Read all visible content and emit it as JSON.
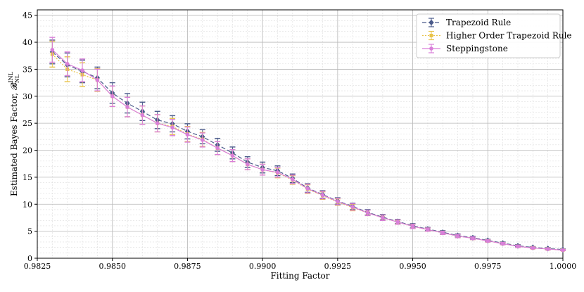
{
  "chart_data": {
    "type": "line",
    "xlabel": "Fitting Factor",
    "ylabel": "Estimated Bayes Factor, 𝓑",
    "ylabel_sup": "INL",
    "ylabel_sub": "NL",
    "xlim": [
      0.9825,
      1.0
    ],
    "ylim": [
      0,
      46
    ],
    "x_ticks": [
      0.9825,
      0.985,
      0.9875,
      0.99,
      0.9925,
      0.995,
      0.9975,
      1.0
    ],
    "x_tick_labels": [
      "0.9825",
      "0.9850",
      "0.9875",
      "0.9900",
      "0.9925",
      "0.9950",
      "0.9975",
      "1.0000"
    ],
    "y_ticks": [
      0,
      5,
      10,
      15,
      20,
      25,
      30,
      35,
      40,
      45
    ],
    "y_tick_labels": [
      "0",
      "5",
      "10",
      "15",
      "20",
      "25",
      "30",
      "35",
      "40",
      "45"
    ],
    "grid": true,
    "legend_position": "top-right",
    "x": [
      0.983,
      0.9835,
      0.984,
      0.9845,
      0.985,
      0.9855,
      0.986,
      0.9865,
      0.987,
      0.9875,
      0.988,
      0.9885,
      0.989,
      0.9895,
      0.99,
      0.9905,
      0.991,
      0.9915,
      0.992,
      0.9925,
      0.993,
      0.9935,
      0.994,
      0.9945,
      0.995,
      0.9955,
      0.996,
      0.9965,
      0.997,
      0.9975,
      0.998,
      0.9985,
      0.999,
      0.9995,
      1.0
    ],
    "series": [
      {
        "name": "Trapezoid Rule",
        "color": "#4a5a8a",
        "dash": "6,3",
        "marker": "diamond",
        "values": [
          38.2,
          35.8,
          34.6,
          33.4,
          30.6,
          28.7,
          27.2,
          25.6,
          24.9,
          23.5,
          22.5,
          21.0,
          19.5,
          17.8,
          16.8,
          16.2,
          14.8,
          13.0,
          11.8,
          10.6,
          9.6,
          8.5,
          7.6,
          6.8,
          6.0,
          5.4,
          4.8,
          4.2,
          3.8,
          3.3,
          2.8,
          2.3,
          2.0,
          1.8,
          1.6
        ],
        "errors": [
          2.2,
          2.2,
          2.1,
          2.0,
          1.9,
          1.8,
          1.7,
          1.6,
          1.5,
          1.4,
          1.3,
          1.2,
          1.1,
          1.0,
          1.0,
          0.9,
          0.8,
          0.8,
          0.7,
          0.6,
          0.6,
          0.5,
          0.5,
          0.4,
          0.4,
          0.3,
          0.3,
          0.3,
          0.25,
          0.2,
          0.2,
          0.2,
          0.15,
          0.15,
          0.1
        ]
      },
      {
        "name": "Higher Order Trapezoid Rule",
        "color": "#e8c34a",
        "dash": "2,2",
        "marker": "square",
        "values": [
          37.8,
          35.0,
          34.0,
          33.0,
          30.0,
          28.0,
          26.5,
          25.0,
          24.4,
          23.0,
          22.0,
          20.4,
          19.0,
          17.4,
          16.4,
          15.8,
          14.5,
          12.8,
          11.6,
          10.4,
          9.4,
          8.4,
          7.5,
          6.7,
          5.9,
          5.3,
          4.7,
          4.1,
          3.7,
          3.2,
          2.7,
          2.2,
          1.9,
          1.7,
          1.5
        ],
        "errors": [
          2.4,
          2.3,
          2.2,
          2.1,
          1.9,
          1.8,
          1.7,
          1.6,
          1.5,
          1.4,
          1.3,
          1.2,
          1.1,
          1.0,
          1.0,
          0.9,
          0.8,
          0.8,
          0.7,
          0.6,
          0.6,
          0.5,
          0.5,
          0.4,
          0.4,
          0.3,
          0.3,
          0.3,
          0.25,
          0.2,
          0.2,
          0.2,
          0.15,
          0.15,
          0.1
        ]
      },
      {
        "name": "Steppingstone",
        "color": "#d97fd9",
        "dash": "",
        "marker": "circle",
        "values": [
          38.6,
          36.0,
          34.8,
          33.0,
          30.0,
          28.0,
          26.5,
          25.0,
          24.2,
          22.9,
          21.9,
          20.4,
          19.0,
          17.4,
          16.4,
          15.9,
          14.6,
          12.9,
          11.7,
          10.5,
          9.5,
          8.4,
          7.5,
          6.7,
          5.9,
          5.3,
          4.7,
          4.1,
          3.7,
          3.2,
          2.7,
          2.2,
          1.9,
          1.7,
          1.5
        ],
        "errors": [
          2.3,
          2.2,
          2.1,
          2.0,
          1.9,
          1.8,
          1.7,
          1.6,
          1.5,
          1.4,
          1.3,
          1.2,
          1.1,
          1.0,
          1.0,
          0.9,
          0.8,
          0.8,
          0.7,
          0.6,
          0.6,
          0.5,
          0.5,
          0.4,
          0.4,
          0.3,
          0.3,
          0.3,
          0.25,
          0.2,
          0.2,
          0.2,
          0.15,
          0.15,
          0.1
        ]
      }
    ]
  }
}
